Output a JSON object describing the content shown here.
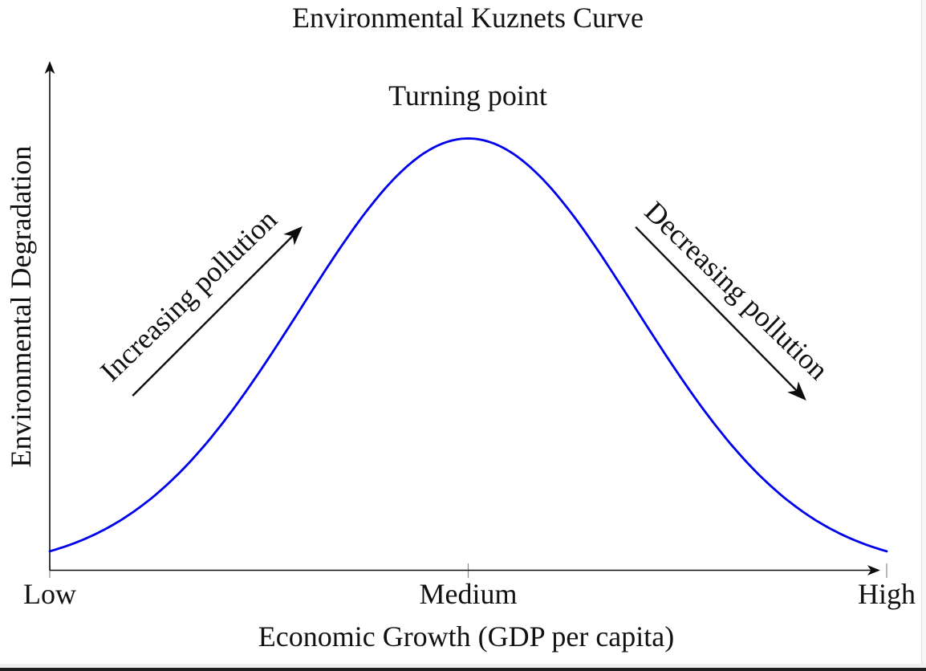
{
  "chart_data": {
    "type": "line",
    "title": "Environmental Kuznets Curve",
    "xlabel": "Economic Growth (GDP per capita)",
    "ylabel": "Environmental Degradation",
    "x_tick_labels": [
      "Low",
      "Medium",
      "High"
    ],
    "x_tick_positions": [
      0,
      0.5,
      1
    ],
    "y_tick_labels": [],
    "grid": false,
    "legend": null,
    "axis_arrows": true,
    "colors": {
      "curve": "#0000ee",
      "axis": "#0d0d0d",
      "tick": "#8a8a8a",
      "annotation_arrow": "#0d0d0d",
      "text": "#111111"
    },
    "xlim": [
      0,
      1
    ],
    "ylim": [
      0,
      1.15
    ],
    "series": [
      {
        "name": "Environmental Kuznets curve",
        "shape": "gaussian",
        "mu": 0.5,
        "sigma": 0.2,
        "amplitude": 1.0,
        "x": [
          0,
          0.05,
          0.1,
          0.15,
          0.2,
          0.25,
          0.3,
          0.35,
          0.4,
          0.45,
          0.5,
          0.55,
          0.6,
          0.65,
          0.7,
          0.75,
          0.8,
          0.85,
          0.9,
          0.95,
          1
        ],
        "y": [
          0.044,
          0.079,
          0.135,
          0.216,
          0.325,
          0.458,
          0.607,
          0.755,
          0.882,
          0.969,
          1.0,
          0.969,
          0.882,
          0.755,
          0.607,
          0.458,
          0.325,
          0.216,
          0.135,
          0.079,
          0.044
        ]
      }
    ],
    "annotations": [
      {
        "id": "turning-point",
        "text": "Turning point",
        "x": 0.5,
        "rotation": 0
      },
      {
        "id": "increasing",
        "text": "Increasing pollution",
        "rotation": -44,
        "arrow_from": [
          0.099,
          0.404
        ],
        "arrow_to": [
          0.3,
          0.793
        ]
      },
      {
        "id": "decreasing",
        "text": "Decreasing pollution",
        "rotation": 44,
        "arrow_from": [
          0.7,
          0.795
        ],
        "arrow_to": [
          0.902,
          0.397
        ]
      }
    ]
  }
}
